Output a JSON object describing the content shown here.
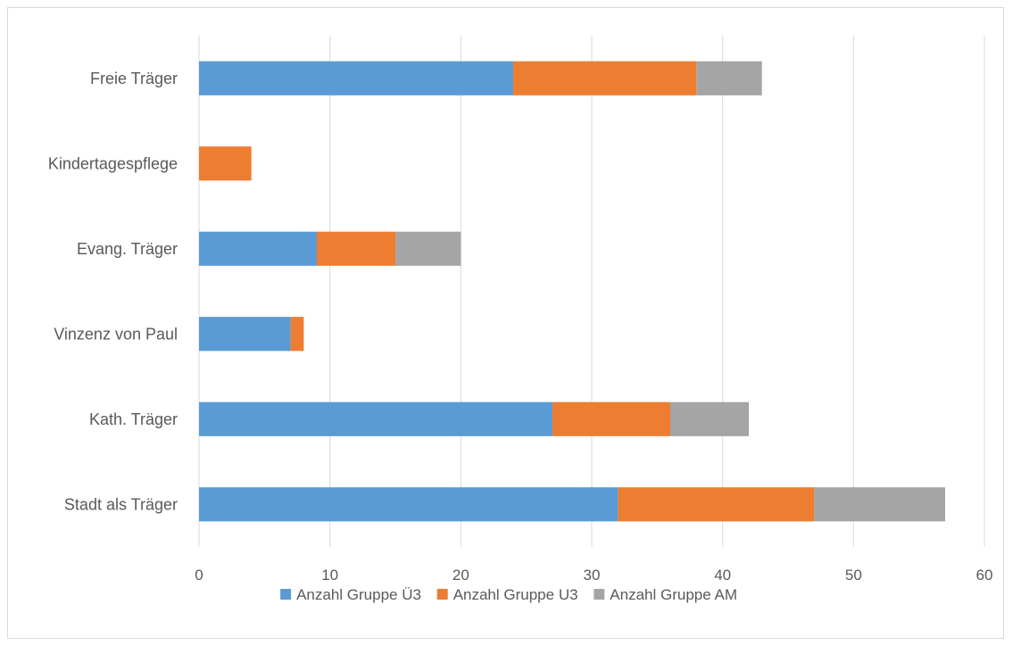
{
  "chart_data": {
    "type": "bar",
    "orientation": "horizontal",
    "stacked": true,
    "categories": [
      "Stadt als Träger",
      "Kath. Träger",
      "Vinzenz von Paul",
      "Evang. Träger",
      "Kindertagespflege",
      "Freie Träger"
    ],
    "series": [
      {
        "name": "Anzahl Gruppe Ü3",
        "color": "#5b9bd5",
        "values": [
          32,
          27,
          7,
          9,
          0,
          24
        ]
      },
      {
        "name": "Anzahl Gruppe U3",
        "color": "#ed7d31",
        "values": [
          15,
          9,
          1,
          6,
          4,
          14
        ]
      },
      {
        "name": "Anzahl Gruppe AM",
        "color": "#a5a5a5",
        "values": [
          10,
          6,
          0,
          5,
          0,
          5
        ]
      }
    ],
    "xlim": [
      0,
      60
    ],
    "xticks": [
      0,
      10,
      20,
      30,
      40,
      50,
      60
    ],
    "grid": "vertical",
    "legend": "bottom",
    "title": "",
    "xlabel": "",
    "ylabel": ""
  }
}
